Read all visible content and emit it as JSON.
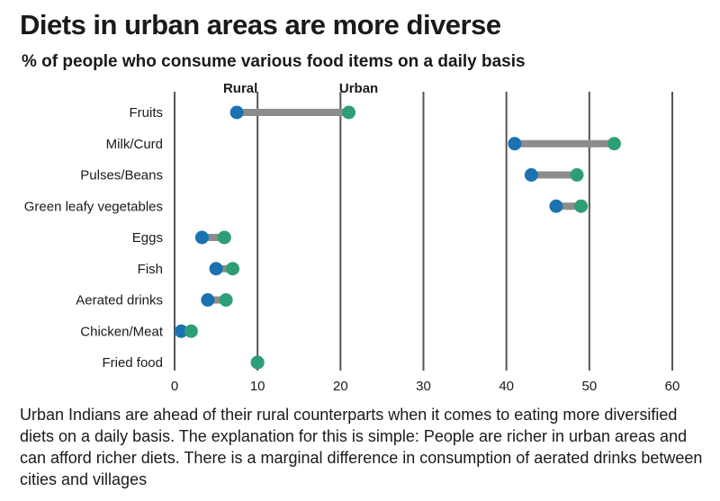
{
  "title": "Diets in urban areas are more diverse",
  "subtitle": "% of people who consume various food items on a daily basis",
  "description": "Urban Indians are ahead of their rural counterparts when it comes to eating more diversified diets on a daily basis. The explanation for this is simple: People are richer in urban areas and can afford richer diets. There is a marginal difference in consumption of aerated drinks between cities and villages",
  "colors": {
    "rural": "#1a72b0",
    "urban": "#2e9e74",
    "connector": "#8c8c8c",
    "gridline": "#555555"
  },
  "chart_data": {
    "type": "dumbbell",
    "legend": {
      "rural": "Rural",
      "urban": "Urban"
    },
    "categories": [
      "Fruits",
      "Milk/Curd",
      "Pulses/Beans",
      "Green leafy vegetables",
      "Eggs",
      "Fish",
      "Aerated drinks",
      "Chicken/Meat",
      "Fried food"
    ],
    "series": [
      {
        "name": "Rural",
        "values": [
          7.5,
          41,
          43,
          46,
          3.3,
          5,
          4,
          0.8,
          10
        ]
      },
      {
        "name": "Urban",
        "values": [
          21,
          53,
          48.5,
          49,
          6,
          7,
          6.2,
          2,
          10
        ]
      }
    ],
    "xlim": [
      0,
      60
    ],
    "xticks": [
      0,
      10,
      20,
      30,
      40,
      50,
      60
    ],
    "grid": true
  }
}
